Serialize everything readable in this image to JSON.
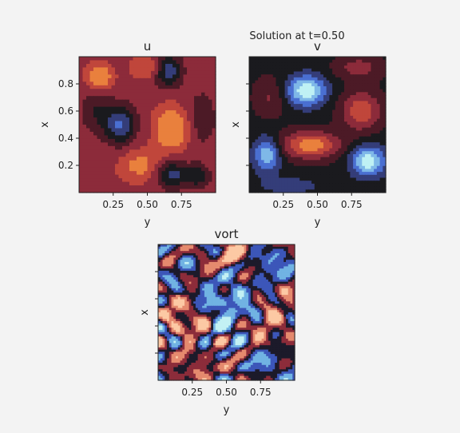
{
  "figure": {
    "suptitle": "Solution at t=0.50"
  },
  "chart_data": [
    {
      "type": "heatmap",
      "title": "u",
      "xlabel": "y",
      "ylabel": "x",
      "xlim": [
        0.0,
        1.0
      ],
      "ylim": [
        0.0,
        1.0
      ],
      "xticks": [
        0.25,
        0.5,
        0.75
      ],
      "xtick_labels": [
        "0.25",
        "0.50",
        "0.75"
      ],
      "yticks": [
        0.2,
        0.4,
        0.6,
        0.8
      ],
      "ytick_labels": [
        "0.2",
        "0.4",
        "0.6",
        "0.8"
      ],
      "colormap": "diverging-icefire",
      "grid": false,
      "levels": [
        {
          "v": -1.0,
          "color": "#bff1f4"
        },
        {
          "v": -0.75,
          "color": "#7fb8e8"
        },
        {
          "v": -0.5,
          "color": "#4a6fd1"
        },
        {
          "v": -0.25,
          "color": "#343d79"
        },
        {
          "v": 0.0,
          "color": "#1a1a1e"
        },
        {
          "v": 0.25,
          "color": "#4c1a26"
        },
        {
          "v": 0.5,
          "color": "#8c2b3a"
        },
        {
          "v": 0.75,
          "color": "#c0463b"
        },
        {
          "v": 1.0,
          "color": "#e9803d"
        }
      ],
      "features": [
        {
          "y": 0.65,
          "x": 0.9,
          "sy": 0.07,
          "sx": 0.08,
          "amp": -1.05
        },
        {
          "y": 0.3,
          "x": 0.5,
          "sy": 0.08,
          "sx": 0.1,
          "amp": -0.95
        },
        {
          "y": 0.68,
          "x": 0.13,
          "sy": 0.08,
          "sx": 0.07,
          "amp": -0.8
        },
        {
          "y": 0.87,
          "x": 0.12,
          "sy": 0.06,
          "sx": 0.06,
          "amp": -0.6
        },
        {
          "y": 0.68,
          "x": 0.47,
          "sy": 0.08,
          "sx": 0.1,
          "amp": 0.85
        },
        {
          "y": 0.15,
          "x": 0.85,
          "sy": 0.06,
          "sx": 0.06,
          "amp": 0.75
        },
        {
          "y": 0.55,
          "x": 0.92,
          "sy": 0.1,
          "sx": 0.06,
          "amp": 0.4
        },
        {
          "y": 0.12,
          "x": 0.6,
          "sy": 0.08,
          "sx": 0.12,
          "amp": -0.4
        },
        {
          "y": 0.9,
          "x": 0.55,
          "sy": 0.08,
          "sx": 0.15,
          "amp": -0.35
        },
        {
          "y": 0.45,
          "x": 0.2,
          "sy": 0.1,
          "sx": 0.08,
          "amp": 0.45
        }
      ],
      "base": 0.55
    },
    {
      "type": "heatmap",
      "title": "v",
      "xlabel": "y",
      "ylabel": "x",
      "xlim": [
        0.0,
        1.0
      ],
      "ylim": [
        0.0,
        1.0
      ],
      "xticks": [
        0.25,
        0.5,
        0.75
      ],
      "xtick_labels": [
        "0.25",
        "0.50",
        "0.75"
      ],
      "yticks": [
        0.2,
        0.4,
        0.6,
        0.8
      ],
      "ytick_labels": [],
      "colormap": "diverging-icefire",
      "grid": false,
      "levels": [
        {
          "v": -1.0,
          "color": "#bff1f4"
        },
        {
          "v": -0.75,
          "color": "#7fb8e8"
        },
        {
          "v": -0.5,
          "color": "#4a6fd1"
        },
        {
          "v": -0.25,
          "color": "#343d79"
        },
        {
          "v": 0.0,
          "color": "#1a1a1e"
        },
        {
          "v": 0.25,
          "color": "#4c1a26"
        },
        {
          "v": 0.5,
          "color": "#8c2b3a"
        },
        {
          "v": 0.75,
          "color": "#c0463b"
        },
        {
          "v": 1.0,
          "color": "#e9803d"
        }
      ],
      "features": [
        {
          "y": 0.42,
          "x": 0.75,
          "sy": 0.1,
          "sx": 0.08,
          "amp": -1.15
        },
        {
          "y": 0.87,
          "x": 0.23,
          "sy": 0.09,
          "sx": 0.08,
          "amp": -1.1
        },
        {
          "y": 0.13,
          "x": 0.28,
          "sy": 0.07,
          "sx": 0.09,
          "amp": -0.9
        },
        {
          "y": 0.45,
          "x": 0.35,
          "sy": 0.15,
          "sx": 0.07,
          "amp": 1.0
        },
        {
          "y": 0.82,
          "x": 0.6,
          "sy": 0.1,
          "sx": 0.1,
          "amp": 0.8
        },
        {
          "y": 0.15,
          "x": 0.7,
          "sy": 0.08,
          "sx": 0.1,
          "amp": 0.35
        },
        {
          "y": 0.8,
          "x": 0.92,
          "sy": 0.12,
          "sx": 0.06,
          "amp": 0.45
        },
        {
          "y": 0.3,
          "x": 0.05,
          "sy": 0.18,
          "sx": 0.05,
          "amp": -0.3
        }
      ],
      "base": 0.05
    },
    {
      "type": "heatmap",
      "title": "vort",
      "xlabel": "y",
      "ylabel": "x",
      "xlim": [
        0.0,
        1.0
      ],
      "ylim": [
        0.0,
        1.0
      ],
      "xticks": [
        0.25,
        0.5,
        0.75
      ],
      "xtick_labels": [
        "0.25",
        "0.50",
        "0.75"
      ],
      "yticks": [
        0.2,
        0.4,
        0.6,
        0.8
      ],
      "ytick_labels": [],
      "colormap": "diverging-icefire-light",
      "grid": false,
      "levels": [
        {
          "v": -1.0,
          "color": "#c3f1f4"
        },
        {
          "v": -0.6,
          "color": "#71b3e3"
        },
        {
          "v": -0.3,
          "color": "#3c56b9"
        },
        {
          "v": 0.0,
          "color": "#1c1a2a"
        },
        {
          "v": 0.3,
          "color": "#8c2c3a"
        },
        {
          "v": 0.6,
          "color": "#e58a6e"
        },
        {
          "v": 1.0,
          "color": "#fcc9a4"
        }
      ],
      "features": [
        {
          "y": 0.55,
          "x": 0.92,
          "sy": 0.1,
          "sx": 0.07,
          "amp": 0.8
        },
        {
          "y": 0.8,
          "x": 0.85,
          "sy": 0.08,
          "sx": 0.07,
          "amp": -0.6
        },
        {
          "y": 0.2,
          "x": 0.45,
          "sy": 0.12,
          "sx": 0.1,
          "amp": 0.65
        },
        {
          "y": 0.5,
          "x": 0.55,
          "sy": 0.12,
          "sx": 0.12,
          "amp": -0.7
        },
        {
          "y": 0.85,
          "x": 0.4,
          "sy": 0.1,
          "sx": 0.15,
          "amp": 0.55
        },
        {
          "y": 0.85,
          "x": 0.15,
          "sy": 0.1,
          "sx": 0.08,
          "amp": -0.5
        },
        {
          "y": 0.3,
          "x": 0.1,
          "sy": 0.1,
          "sx": 0.08,
          "amp": 0.5
        }
      ],
      "base": 0.0,
      "noise": 0.95
    }
  ]
}
